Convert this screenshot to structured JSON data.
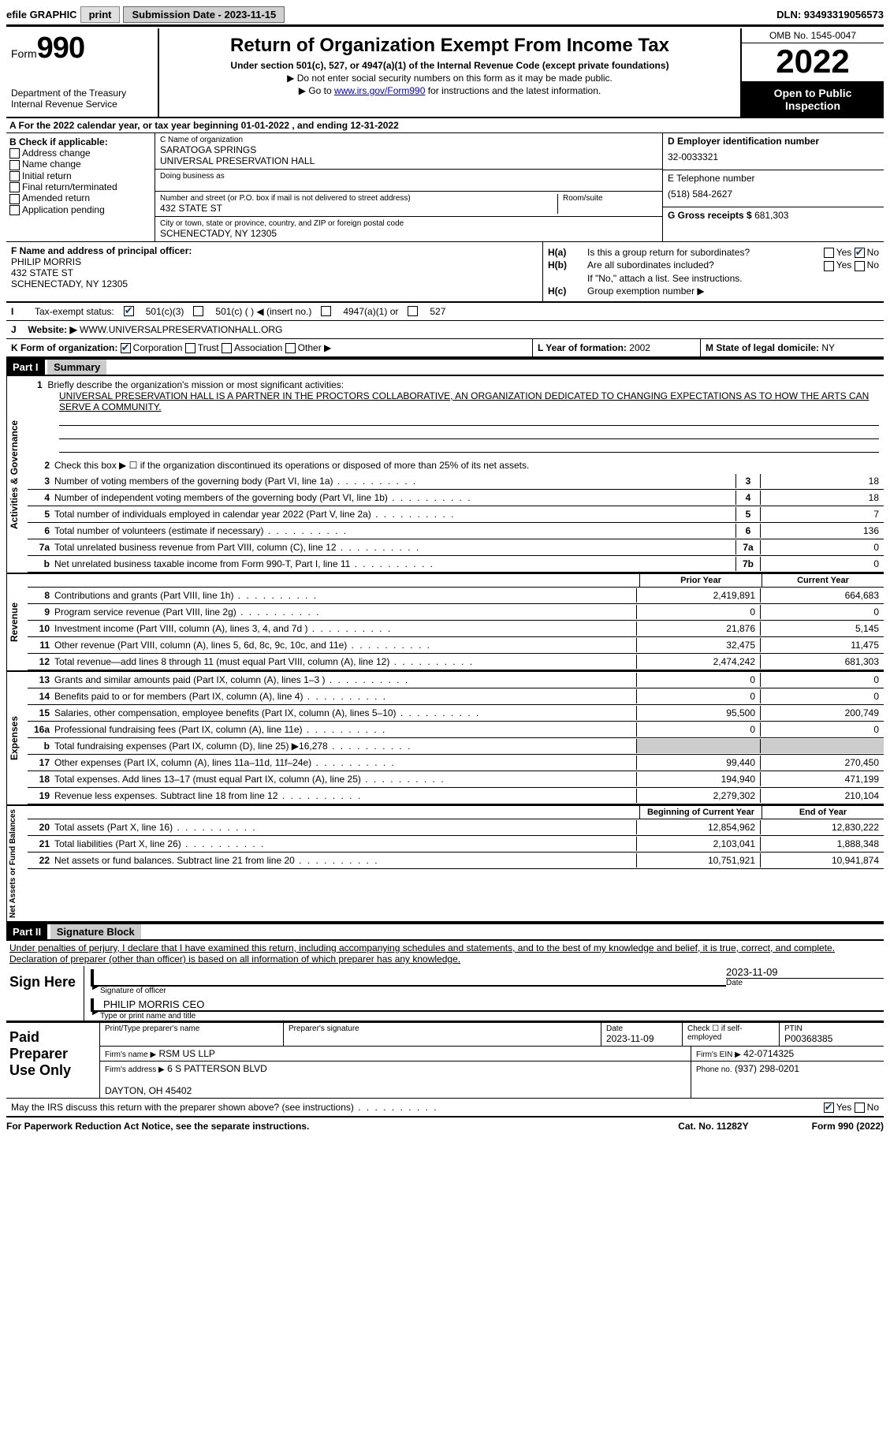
{
  "topbar": {
    "efile_label": "efile GRAPHIC",
    "print_btn": "print",
    "submission_label": "Submission Date - 2023-11-15",
    "dln": "DLN: 93493319056573"
  },
  "header": {
    "form_label": "Form",
    "form_number": "990",
    "dept": "Department of the Treasury\nInternal Revenue Service",
    "title": "Return of Organization Exempt From Income Tax",
    "subtitle": "Under section 501(c), 527, or 4947(a)(1) of the Internal Revenue Code (except private foundations)",
    "note1": "Do not enter social security numbers on this form as it may be made public.",
    "note2_prefix": "Go to ",
    "note2_link": "www.irs.gov/Form990",
    "note2_suffix": " for instructions and the latest information.",
    "omb": "OMB No. 1545-0047",
    "year": "2022",
    "open": "Open to Public Inspection"
  },
  "row_a": "A For the 2022 calendar year, or tax year beginning 01-01-2022    , and ending 12-31-2022",
  "col_b": {
    "header": "B Check if applicable:",
    "items": [
      "Address change",
      "Name change",
      "Initial return",
      "Final return/terminated",
      "Amended return",
      "Application pending"
    ]
  },
  "col_c": {
    "name_label": "C Name of organization",
    "name": "SARATOGA SPRINGS\nUNIVERSAL PRESERVATION HALL",
    "dba_label": "Doing business as",
    "addr_label": "Number and street (or P.O. box if mail is not delivered to street address)",
    "addr": "432 STATE ST",
    "room_label": "Room/suite",
    "city_label": "City or town, state or province, country, and ZIP or foreign postal code",
    "city": "SCHENECTADY, NY  12305"
  },
  "col_d": {
    "ein_label": "D Employer identification number",
    "ein": "32-0033321",
    "phone_label": "E Telephone number",
    "phone": "(518) 584-2627",
    "gross_label": "G Gross receipts $",
    "gross": "681,303"
  },
  "f_block": {
    "label": "F Name and address of principal officer:",
    "name": "PHILIP MORRIS",
    "addr": "432 STATE ST\nSCHENECTADY, NY  12305"
  },
  "h_block": {
    "ha": "Is this a group return for subordinates?",
    "hb": "Are all subordinates included?",
    "hb_note": "If \"No,\" attach a list. See instructions.",
    "hc": "Group exemption number ▶"
  },
  "tax_exempt": {
    "label": "Tax-exempt status:",
    "opt1": "501(c)(3)",
    "opt2": "501(c) (  ) ◀ (insert no.)",
    "opt3": "4947(a)(1) or",
    "opt4": "527"
  },
  "j_row": {
    "label": "J",
    "website_label": "Website: ▶",
    "website": "WWW.UNIVERSALPRESERVATIONHALL.ORG"
  },
  "k_row": {
    "label": "K Form of organization:",
    "opts": [
      "Corporation",
      "Trust",
      "Association",
      "Other ▶"
    ],
    "l_label": "L Year of formation:",
    "l_val": "2002",
    "m_label": "M State of legal domicile:",
    "m_val": "NY"
  },
  "part1": {
    "header": "Part I",
    "title": "Summary",
    "line1_label": "Briefly describe the organization's mission or most significant activities:",
    "mission": "UNIVERSAL PRESERVATION HALL IS A PARTNER IN THE PROCTORS COLLABORATIVE, AN ORGANIZATION DEDICATED TO CHANGING EXPECTATIONS AS TO HOW THE ARTS CAN SERVE A COMMUNITY.",
    "line2": "Check this box ▶ ☐ if the organization discontinued its operations or disposed of more than 25% of its net assets."
  },
  "sections": {
    "activities": "Activities & Governance",
    "revenue": "Revenue",
    "expenses": "Expenses",
    "netassets": "Net Assets or Fund Balances"
  },
  "lines_top": [
    {
      "num": "3",
      "desc": "Number of voting members of the governing body (Part VI, line 1a)",
      "box": "3",
      "val": "18"
    },
    {
      "num": "4",
      "desc": "Number of independent voting members of the governing body (Part VI, line 1b)",
      "box": "4",
      "val": "18"
    },
    {
      "num": "5",
      "desc": "Total number of individuals employed in calendar year 2022 (Part V, line 2a)",
      "box": "5",
      "val": "7"
    },
    {
      "num": "6",
      "desc": "Total number of volunteers (estimate if necessary)",
      "box": "6",
      "val": "136"
    },
    {
      "num": "7a",
      "desc": "Total unrelated business revenue from Part VIII, column (C), line 12",
      "box": "7a",
      "val": "0"
    },
    {
      "num": "b",
      "desc": "Net unrelated business taxable income from Form 990-T, Part I, line 11",
      "box": "7b",
      "val": "0"
    }
  ],
  "col_headers": {
    "prior": "Prior Year",
    "current": "Current Year",
    "beg": "Beginning of Current Year",
    "end": "End of Year"
  },
  "revenue_lines": [
    {
      "num": "8",
      "desc": "Contributions and grants (Part VIII, line 1h)",
      "prior": "2,419,891",
      "curr": "664,683"
    },
    {
      "num": "9",
      "desc": "Program service revenue (Part VIII, line 2g)",
      "prior": "0",
      "curr": "0"
    },
    {
      "num": "10",
      "desc": "Investment income (Part VIII, column (A), lines 3, 4, and 7d )",
      "prior": "21,876",
      "curr": "5,145"
    },
    {
      "num": "11",
      "desc": "Other revenue (Part VIII, column (A), lines 5, 6d, 8c, 9c, 10c, and 11e)",
      "prior": "32,475",
      "curr": "11,475"
    },
    {
      "num": "12",
      "desc": "Total revenue—add lines 8 through 11 (must equal Part VIII, column (A), line 12)",
      "prior": "2,474,242",
      "curr": "681,303"
    }
  ],
  "expense_lines": [
    {
      "num": "13",
      "desc": "Grants and similar amounts paid (Part IX, column (A), lines 1–3 )",
      "prior": "0",
      "curr": "0"
    },
    {
      "num": "14",
      "desc": "Benefits paid to or for members (Part IX, column (A), line 4)",
      "prior": "0",
      "curr": "0"
    },
    {
      "num": "15",
      "desc": "Salaries, other compensation, employee benefits (Part IX, column (A), lines 5–10)",
      "prior": "95,500",
      "curr": "200,749"
    },
    {
      "num": "16a",
      "desc": "Professional fundraising fees (Part IX, column (A), line 11e)",
      "prior": "0",
      "curr": "0"
    },
    {
      "num": "b",
      "desc": "Total fundraising expenses (Part IX, column (D), line 25) ▶16,278",
      "prior": "grey",
      "curr": "grey"
    },
    {
      "num": "17",
      "desc": "Other expenses (Part IX, column (A), lines 11a–11d, 11f–24e)",
      "prior": "99,440",
      "curr": "270,450"
    },
    {
      "num": "18",
      "desc": "Total expenses. Add lines 13–17 (must equal Part IX, column (A), line 25)",
      "prior": "194,940",
      "curr": "471,199"
    },
    {
      "num": "19",
      "desc": "Revenue less expenses. Subtract line 18 from line 12",
      "prior": "2,279,302",
      "curr": "210,104"
    }
  ],
  "net_lines": [
    {
      "num": "20",
      "desc": "Total assets (Part X, line 16)",
      "prior": "12,854,962",
      "curr": "12,830,222"
    },
    {
      "num": "21",
      "desc": "Total liabilities (Part X, line 26)",
      "prior": "2,103,041",
      "curr": "1,888,348"
    },
    {
      "num": "22",
      "desc": "Net assets or fund balances. Subtract line 21 from line 20",
      "prior": "10,751,921",
      "curr": "10,941,874"
    }
  ],
  "part2": {
    "header": "Part II",
    "title": "Signature Block",
    "declaration": "Under penalties of perjury, I declare that I have examined this return, including accompanying schedules and statements, and to the best of my knowledge and belief, it is true, correct, and complete. Declaration of preparer (other than officer) is based on all information of which preparer has any knowledge."
  },
  "sign": {
    "label": "Sign Here",
    "sig_label": "Signature of officer",
    "date": "2023-11-09",
    "date_label": "Date",
    "name": "PHILIP MORRIS CEO",
    "name_label": "Type or print name and title"
  },
  "paid": {
    "label": "Paid Preparer Use Only",
    "h1": "Print/Type preparer's name",
    "h2": "Preparer's signature",
    "h3": "Date",
    "date": "2023-11-09",
    "h4": "Check ☐ if self-employed",
    "h5": "PTIN",
    "ptin": "P00368385",
    "firm_label": "Firm's name    ▶",
    "firm": "RSM US LLP",
    "ein_label": "Firm's EIN ▶",
    "ein": "42-0714325",
    "addr_label": "Firm's address ▶",
    "addr": "6 S PATTERSON BLVD\n\nDAYTON, OH  45402",
    "phone_label": "Phone no.",
    "phone": "(937) 298-0201"
  },
  "discuss": "May the IRS discuss this return with the preparer shown above? (see instructions)",
  "footer": {
    "left": "For Paperwork Reduction Act Notice, see the separate instructions.",
    "mid": "Cat. No. 11282Y",
    "right": "Form 990 (2022)"
  }
}
